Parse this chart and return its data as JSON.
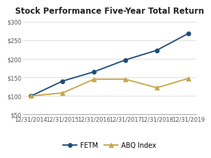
{
  "title": "Stock Performance Five-Year Total Return",
  "x_labels": [
    "12/31/2014",
    "12/31/2015",
    "12/31/2016",
    "12/31/2017",
    "12/31/2018",
    "12/31/2019"
  ],
  "fetm_values": [
    100,
    140,
    165,
    197,
    223,
    268
  ],
  "abq_values": [
    100,
    108,
    145,
    145,
    122,
    147
  ],
  "fetm_color": "#1f4e79",
  "abq_color": "#c8a84b",
  "ylim": [
    50,
    310
  ],
  "yticks": [
    50,
    100,
    150,
    200,
    250,
    300
  ],
  "ytick_labels": [
    "$50",
    "$100",
    "$150",
    "$200",
    "$250",
    "$300"
  ],
  "background_color": "#ffffff",
  "plot_bg_color": "#ffffff",
  "grid_color": "#e0e0e0",
  "title_fontsize": 8.5,
  "legend_fontsize": 7,
  "tick_fontsize": 6
}
